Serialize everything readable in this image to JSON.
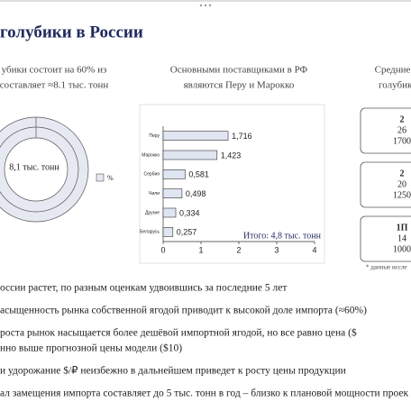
{
  "header": {
    "title": "голубики в России"
  },
  "left_panel": {
    "heading": [
      "убики состоит на 60% из",
      "составляет ≈8.1 тыс. тонн"
    ],
    "donut_label": "8,1 тыс. тонн",
    "legend_label": "%"
  },
  "middle_panel": {
    "heading": [
      "Основными поставщиками в РФ",
      "являются Перу и Марокко"
    ]
  },
  "chart_data": {
    "type": "bar",
    "orientation": "horizontal",
    "categories": [
      "Перу",
      "Марокко",
      "Сербия",
      "Чили",
      "Другие",
      "Беларусь"
    ],
    "values": [
      1.716,
      1.423,
      0.581,
      0.498,
      0.334,
      0.257
    ],
    "value_labels": [
      "1,716",
      "1,423",
      "0,581",
      "0,498",
      "0,334",
      "0,257"
    ],
    "color": "#dfe5f1",
    "xlim": [
      0,
      4
    ],
    "xticks": [
      0,
      1,
      2,
      3,
      4
    ],
    "annotation": "Итого: 4,8 тыс. тонн"
  },
  "right_panel": {
    "heading": [
      "Средние опт",
      "голубика в"
    ],
    "boxes": [
      [
        "2",
        "26",
        "1700"
      ],
      [
        "2",
        "20",
        "1250"
      ],
      [
        "1П",
        "14",
        "1000"
      ]
    ],
    "footnote": "* данные иссле"
  },
  "bullets": [
    [
      "оссии растет, по разным оценкам удвоившись за последние 5 лет"
    ],
    [
      "асыщенность рынка собственной ягодой приводит к высокой доле импорта (≈60%)"
    ],
    [
      "роста рынок насыщается более дешёвой импортной ягодой, но все равно цена ($",
      "нно выше прогнозной цены модели ($10)"
    ],
    [
      "и удорожание $/₽ неизбежно в дальнейшем приведет к росту цены продукции"
    ],
    [
      "ал замещения импорта составляет до 5 тыс. тонн в год – близко к плановой мощности проек"
    ]
  ]
}
